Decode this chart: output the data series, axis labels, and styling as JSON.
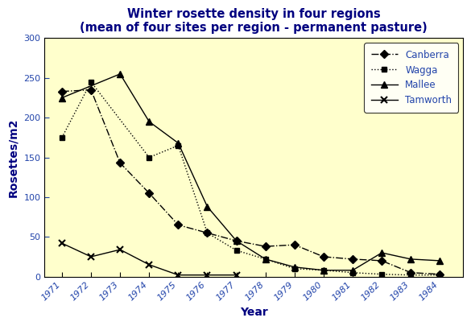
{
  "title": "Winter rosette density in four regions",
  "subtitle": "(mean of four sites per region - permanent pasture)",
  "xlabel": "Year",
  "ylabel": "Rosettes/m2",
  "years": [
    1971,
    1972,
    1973,
    1974,
    1975,
    1976,
    1977,
    1978,
    1979,
    1980,
    1981,
    1982,
    1983,
    1984
  ],
  "canberra": [
    233,
    235,
    143,
    105,
    65,
    55,
    45,
    38,
    40,
    25,
    22,
    20,
    5,
    3
  ],
  "wagga": [
    175,
    245,
    null,
    150,
    165,
    55,
    33,
    22,
    10,
    8,
    5,
    3,
    2,
    2
  ],
  "mallee": [
    225,
    null,
    255,
    195,
    168,
    88,
    45,
    22,
    12,
    8,
    8,
    30,
    22,
    20
  ],
  "tamworth": [
    42,
    25,
    34,
    15,
    2,
    2,
    2,
    null,
    null,
    null,
    null,
    null,
    null,
    null
  ],
  "ylim": [
    0,
    300
  ],
  "yticks": [
    0,
    50,
    100,
    150,
    200,
    250,
    300
  ],
  "plot_bg": "#ffffcc",
  "outer_bg": "#ffffff",
  "title_color": "#000080",
  "tick_color": "#2244aa",
  "axis_label_color": "#000080",
  "line_color": "#000000"
}
